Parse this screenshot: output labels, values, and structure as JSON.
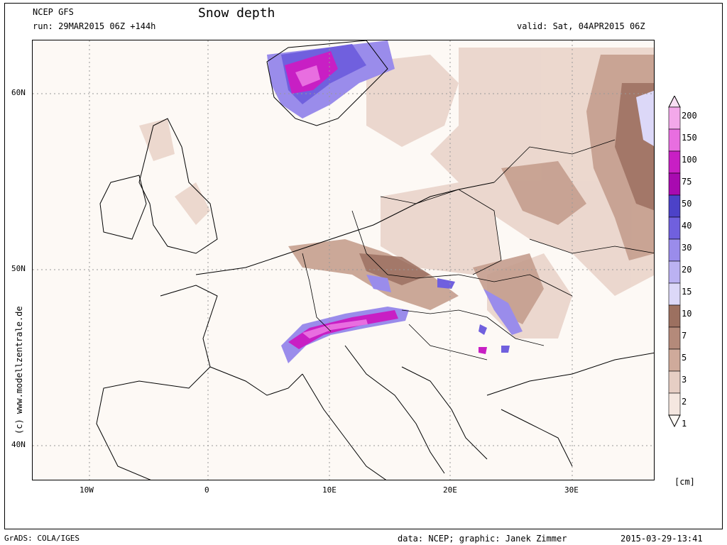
{
  "header": {
    "model": "NCEP GFS",
    "run": "run: 29MAR2015 06Z +144h",
    "title": "Snow depth",
    "valid": "valid: Sat, 04APR2015 06Z"
  },
  "watermark": "(c) www.modellzentrale.de",
  "footer": {
    "left": "GrADS: COLA/IGES",
    "center": "data: NCEP; graphic: Janek Zimmer",
    "right": "2015-03-29-13:41"
  },
  "axes": {
    "lat_labels": [
      "60N",
      "50N",
      "40N"
    ],
    "lon_labels": [
      "10W",
      "0",
      "10E",
      "20E",
      "30E"
    ]
  },
  "legend": {
    "unit": "[cm]",
    "levels": [
      "200",
      "150",
      "100",
      "75",
      "50",
      "40",
      "30",
      "20",
      "15",
      "10",
      "7",
      "5",
      "3",
      "2",
      "1"
    ],
    "colors": [
      "#f9e0f4",
      "#f3a8ea",
      "#e86ee0",
      "#c81fc4",
      "#a80ab0",
      "#4c42c8",
      "#7060de",
      "#9a8ceb",
      "#bbb2f2",
      "#dcd8f8",
      "#9c7060",
      "#b48a7a",
      "#cfaa9b",
      "#e6cec4",
      "#f5e7e0",
      "#fdf9f5"
    ]
  }
}
